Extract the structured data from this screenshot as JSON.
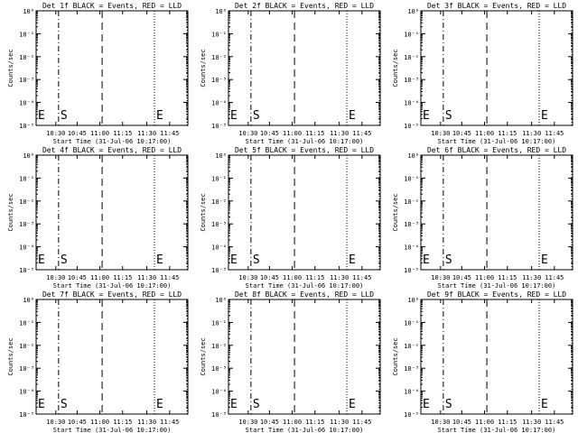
{
  "chart_data": [
    {
      "type": "line",
      "title": "Det 1f BLACK = Events, RED = LLD",
      "xlabel": "Start Time (31-Jul-06 10:17:00)",
      "ylabel": "Counts/sec",
      "x_ticks": [
        "10:30",
        "10:45",
        "11:00",
        "11:15",
        "11:30",
        "11:45"
      ],
      "y_ticks": [
        "10⁰",
        "10⁻¹",
        "10⁻²",
        "10⁻³",
        "10⁻⁴",
        "10⁻⁵"
      ],
      "ylim": [
        1e-05,
        1
      ],
      "y_scale": "log",
      "markers": [
        {
          "label": "E",
          "line": "dotted"
        },
        {
          "label": "S",
          "line": "dash-dot"
        },
        {
          "label": "",
          "line": "dashed"
        },
        {
          "label": "E",
          "line": "dotted"
        },
        {
          "label": "",
          "line": "dotted"
        }
      ],
      "series": []
    },
    {
      "type": "line",
      "title": "Det 2f BLACK = Events, RED = LLD",
      "xlabel": "Start Time (31-Jul-06 10:17:00)",
      "ylabel": "Counts/sec",
      "x_ticks": [
        "10:30",
        "10:45",
        "11:00",
        "11:15",
        "11:30",
        "11:45"
      ],
      "y_ticks": [
        "10⁰",
        "10⁻¹",
        "10⁻²",
        "10⁻³",
        "10⁻⁴",
        "10⁻⁵"
      ],
      "ylim": [
        1e-05,
        1
      ],
      "y_scale": "log",
      "markers": [
        {
          "label": "E",
          "line": "dotted"
        },
        {
          "label": "S",
          "line": "dash-dot"
        },
        {
          "label": "",
          "line": "dashed"
        },
        {
          "label": "E",
          "line": "dotted"
        },
        {
          "label": "",
          "line": "dotted"
        }
      ],
      "series": []
    },
    {
      "type": "line",
      "title": "Det 3f BLACK = Events, RED = LLD",
      "xlabel": "Start Time (31-Jul-06 10:17:00)",
      "ylabel": "Counts/sec",
      "x_ticks": [
        "10:30",
        "10:45",
        "11:00",
        "11:15",
        "11:30",
        "11:45"
      ],
      "y_ticks": [
        "10⁰",
        "10⁻¹",
        "10⁻²",
        "10⁻³",
        "10⁻⁴",
        "10⁻⁵"
      ],
      "ylim": [
        1e-05,
        1
      ],
      "y_scale": "log",
      "markers": [
        {
          "label": "E",
          "line": "dotted"
        },
        {
          "label": "S",
          "line": "dash-dot"
        },
        {
          "label": "",
          "line": "dashed"
        },
        {
          "label": "E",
          "line": "dotted"
        },
        {
          "label": "",
          "line": "dotted"
        }
      ],
      "series": []
    },
    {
      "type": "line",
      "title": "Det 4f BLACK = Events, RED = LLD",
      "xlabel": "Start Time (31-Jul-06 10:17:00)",
      "ylabel": "Counts/sec",
      "x_ticks": [
        "10:30",
        "10:45",
        "11:00",
        "11:15",
        "11:30",
        "11:45"
      ],
      "y_ticks": [
        "10⁰",
        "10⁻¹",
        "10⁻²",
        "10⁻³",
        "10⁻⁴",
        "10⁻⁵"
      ],
      "ylim": [
        1e-05,
        1
      ],
      "y_scale": "log",
      "markers": [
        {
          "label": "E",
          "line": "dotted"
        },
        {
          "label": "S",
          "line": "dash-dot"
        },
        {
          "label": "",
          "line": "dashed"
        },
        {
          "label": "E",
          "line": "dotted"
        },
        {
          "label": "",
          "line": "dotted"
        }
      ],
      "series": []
    },
    {
      "type": "line",
      "title": "Det 5f BLACK = Events, RED = LLD",
      "xlabel": "Start Time (31-Jul-06 10:17:00)",
      "ylabel": "Counts/sec",
      "x_ticks": [
        "10:30",
        "10:45",
        "11:00",
        "11:15",
        "11:30",
        "11:45"
      ],
      "y_ticks": [
        "10⁰",
        "10⁻¹",
        "10⁻²",
        "10⁻³",
        "10⁻⁴",
        "10⁻⁵"
      ],
      "ylim": [
        1e-05,
        1
      ],
      "y_scale": "log",
      "markers": [
        {
          "label": "E",
          "line": "dotted"
        },
        {
          "label": "S",
          "line": "dash-dot"
        },
        {
          "label": "",
          "line": "dashed"
        },
        {
          "label": "E",
          "line": "dotted"
        },
        {
          "label": "",
          "line": "dotted"
        }
      ],
      "series": []
    },
    {
      "type": "line",
      "title": "Det 6f BLACK = Events, RED = LLD",
      "xlabel": "Start Time (31-Jul-06 10:17:00)",
      "ylabel": "Counts/sec",
      "x_ticks": [
        "10:30",
        "10:45",
        "11:00",
        "11:15",
        "11:30",
        "11:45"
      ],
      "y_ticks": [
        "10⁰",
        "10⁻¹",
        "10⁻²",
        "10⁻³",
        "10⁻⁴",
        "10⁻⁵"
      ],
      "ylim": [
        1e-05,
        1
      ],
      "y_scale": "log",
      "markers": [
        {
          "label": "E",
          "line": "dotted"
        },
        {
          "label": "S",
          "line": "dash-dot"
        },
        {
          "label": "",
          "line": "dashed"
        },
        {
          "label": "E",
          "line": "dotted"
        },
        {
          "label": "",
          "line": "dotted"
        }
      ],
      "series": []
    },
    {
      "type": "line",
      "title": "Det 7f BLACK = Events, RED = LLD",
      "xlabel": "Start Time (31-Jul-06 10:17:00)",
      "ylabel": "Counts/sec",
      "x_ticks": [
        "10:30",
        "10:45",
        "11:00",
        "11:15",
        "11:30",
        "11:45"
      ],
      "y_ticks": [
        "10⁰",
        "10⁻¹",
        "10⁻²",
        "10⁻³",
        "10⁻⁴",
        "10⁻⁵"
      ],
      "ylim": [
        1e-05,
        1
      ],
      "y_scale": "log",
      "markers": [
        {
          "label": "E",
          "line": "dotted"
        },
        {
          "label": "S",
          "line": "dash-dot"
        },
        {
          "label": "",
          "line": "dashed"
        },
        {
          "label": "E",
          "line": "dotted"
        },
        {
          "label": "",
          "line": "dotted"
        }
      ],
      "series": []
    },
    {
      "type": "line",
      "title": "Det 8f BLACK = Events, RED = LLD",
      "xlabel": "Start Time (31-Jul-06 10:17:00)",
      "ylabel": "Counts/sec",
      "x_ticks": [
        "10:30",
        "10:45",
        "11:00",
        "11:15",
        "11:30",
        "11:45"
      ],
      "y_ticks": [
        "10⁰",
        "10⁻¹",
        "10⁻²",
        "10⁻³",
        "10⁻⁴",
        "10⁻⁵"
      ],
      "ylim": [
        1e-05,
        1
      ],
      "y_scale": "log",
      "markers": [
        {
          "label": "E",
          "line": "dotted"
        },
        {
          "label": "S",
          "line": "dash-dot"
        },
        {
          "label": "",
          "line": "dashed"
        },
        {
          "label": "E",
          "line": "dotted"
        },
        {
          "label": "",
          "line": "dotted"
        }
      ],
      "series": []
    },
    {
      "type": "line",
      "title": "Det 9f BLACK = Events, RED = LLD",
      "xlabel": "Start Time (31-Jul-06 10:17:00)",
      "ylabel": "Counts/sec",
      "x_ticks": [
        "10:30",
        "10:45",
        "11:00",
        "11:15",
        "11:30",
        "11:45"
      ],
      "y_ticks": [
        "10⁰",
        "10⁻¹",
        "10⁻²",
        "10⁻³",
        "10⁻⁴",
        "10⁻⁵"
      ],
      "ylim": [
        1e-05,
        1
      ],
      "y_scale": "log",
      "markers": [
        {
          "label": "E",
          "line": "dotted"
        },
        {
          "label": "S",
          "line": "dash-dot"
        },
        {
          "label": "",
          "line": "dashed"
        },
        {
          "label": "E",
          "line": "dotted"
        },
        {
          "label": "",
          "line": "dotted"
        }
      ],
      "series": []
    }
  ],
  "colors": {
    "events": "#000000",
    "lld": "#ff0000",
    "background": "#ffffff"
  }
}
